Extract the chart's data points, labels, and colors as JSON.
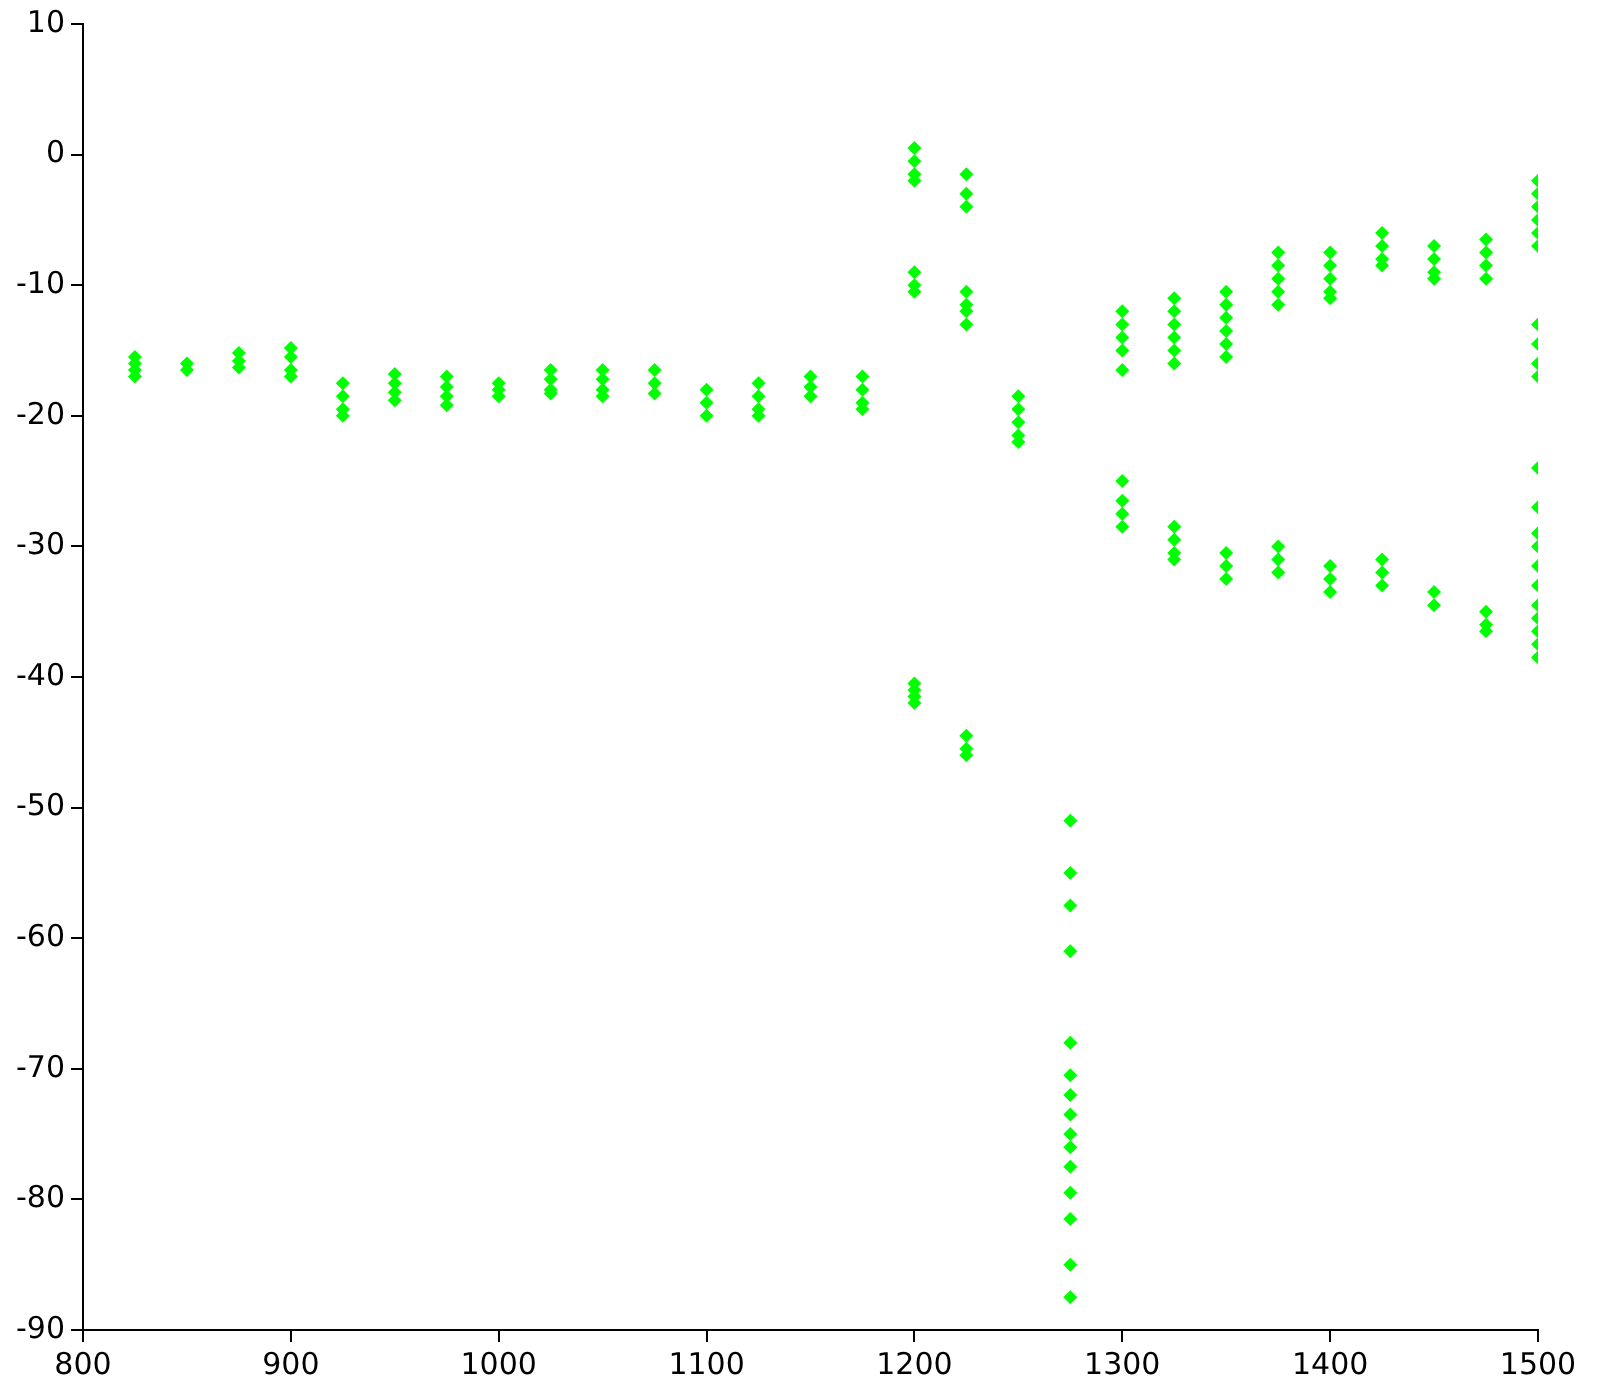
{
  "chart_data": {
    "type": "scatter",
    "marker": "diamond",
    "grid": false,
    "xlim": [
      800,
      1500
    ],
    "xticks": [
      800,
      900,
      1000,
      1100,
      1200,
      1300,
      1400,
      1500
    ],
    "ylim": [
      -90,
      10
    ],
    "yticks": [
      -90,
      -80,
      -70,
      -60,
      -50,
      -40,
      -30,
      -20,
      -10,
      0,
      10
    ],
    "series": [
      {
        "color": "#00ff00",
        "x": [
          825,
          825,
          825,
          825,
          850,
          850,
          875,
          875,
          875,
          900,
          900,
          900,
          900,
          925,
          925,
          925,
          925,
          950,
          950,
          950,
          950,
          975,
          975,
          975,
          975,
          1000,
          1000,
          1000,
          1025,
          1025,
          1025,
          1025,
          1050,
          1050,
          1050,
          1050,
          1075,
          1075,
          1075,
          1100,
          1100,
          1100,
          1125,
          1125,
          1125,
          1125,
          1150,
          1150,
          1150,
          1175,
          1175,
          1175,
          1175,
          1200,
          1200,
          1200,
          1200,
          1200,
          1200,
          1200,
          1200,
          1200,
          1200,
          1200,
          1225,
          1225,
          1225,
          1225,
          1225,
          1225,
          1225,
          1225,
          1225,
          1225,
          1250,
          1250,
          1250,
          1250,
          1250,
          1275,
          1275,
          1275,
          1275,
          1275,
          1275,
          1275,
          1275,
          1275,
          1275,
          1275,
          1275,
          1275,
          1275,
          1275,
          1300,
          1300,
          1300,
          1300,
          1300,
          1300,
          1300,
          1300,
          1300,
          1325,
          1325,
          1325,
          1325,
          1325,
          1325,
          1325,
          1325,
          1325,
          1325,
          1350,
          1350,
          1350,
          1350,
          1350,
          1350,
          1350,
          1350,
          1350,
          1375,
          1375,
          1375,
          1375,
          1375,
          1375,
          1375,
          1375,
          1400,
          1400,
          1400,
          1400,
          1400,
          1400,
          1400,
          1400,
          1425,
          1425,
          1425,
          1425,
          1425,
          1425,
          1425,
          1450,
          1450,
          1450,
          1450,
          1450,
          1450,
          1475,
          1475,
          1475,
          1475,
          1475,
          1475,
          1475,
          1500,
          1500,
          1500,
          1500,
          1500,
          1500,
          1500,
          1500,
          1500,
          1500,
          1500,
          1500,
          1500,
          1500,
          1500,
          1500,
          1500,
          1500,
          1500,
          1500,
          1500
        ],
        "values": [
          -15.5,
          -16,
          -16.5,
          -17,
          -16,
          -16.5,
          -15.2,
          -15.8,
          -16.3,
          -14.8,
          -15.5,
          -16.5,
          -17,
          -17.5,
          -18.5,
          -19.5,
          -20,
          -16.8,
          -17.5,
          -18.2,
          -18.8,
          -17,
          -17.8,
          -18.5,
          -19.2,
          -17.5,
          -18,
          -18.5,
          -16.5,
          -17.2,
          -18,
          -18.3,
          -16.5,
          -17.2,
          -18,
          -18.5,
          -16.5,
          -17.5,
          -18.3,
          -18,
          -19,
          -20,
          -17.5,
          -18.5,
          -19.5,
          -20,
          -17,
          -17.8,
          -18.5,
          -17,
          -18,
          -19,
          -19.5,
          0.5,
          -0.5,
          -1.5,
          -2,
          -9,
          -10,
          -10.5,
          -40.5,
          -41,
          -41.5,
          -42,
          -1.5,
          -3,
          -4,
          -10.5,
          -11.5,
          -12,
          -13,
          -44.5,
          -45.5,
          -46,
          -18.5,
          -19.5,
          -20.5,
          -21.5,
          -22,
          -51,
          -55,
          -57.5,
          -61,
          -68,
          -70.5,
          -72,
          -73.5,
          -75,
          -76,
          -77.5,
          -79.5,
          -81.5,
          -85,
          -87.5,
          -12,
          -13,
          -14,
          -15,
          -16.5,
          -25,
          -26.5,
          -27.5,
          -28.5,
          -11,
          -12,
          -13,
          -14,
          -15,
          -16,
          -28.5,
          -29.5,
          -30.5,
          -31,
          -10.5,
          -11.5,
          -12.5,
          -13.5,
          -14.5,
          -15.5,
          -30.5,
          -31.5,
          -32.5,
          -7.5,
          -8.5,
          -9.5,
          -10.5,
          -11.5,
          -30,
          -31,
          -32,
          -7.5,
          -8.5,
          -9.5,
          -10.5,
          -11,
          -31.5,
          -32.5,
          -33.5,
          -6,
          -7,
          -8,
          -8.5,
          -31,
          -32,
          -33,
          -7,
          -8,
          -9,
          -9.5,
          -33.5,
          -34.5,
          -6.5,
          -7.5,
          -8.5,
          -9.5,
          -35,
          -36,
          -36.5,
          -2,
          -3,
          -4,
          -5,
          -6,
          -7,
          -13,
          -14.5,
          -16,
          -17,
          -24,
          -27,
          -29,
          -30,
          -31.5,
          -33,
          -34.5,
          -35.5,
          -36.5,
          -37.5,
          -38.5
        ]
      }
    ]
  }
}
